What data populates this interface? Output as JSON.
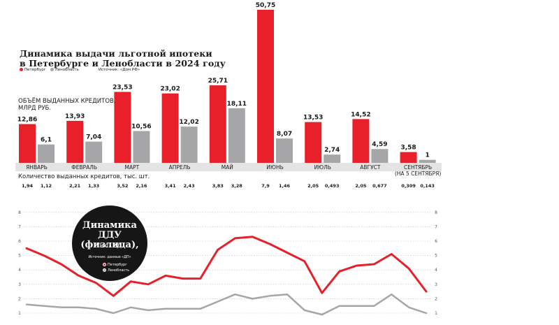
{
  "title_line1": "Динамика выдачи льготной ипотеки",
  "title_line2": "в Петербурге и Ленобласти в 2024 году",
  "legend": {
    "spb": "Петербург",
    "lo": "Ленобласть",
    "source": "Источник: «Дом.РФ»"
  },
  "volume_label_line1": "ОБЪЁМ ВЫДАННЫХ КРЕДИТОВ,",
  "volume_label_line2": "МЛРД РУБ.",
  "count_label": "Количество выданных кредитов, тыс. шт.",
  "badge": {
    "line1": "Динамика",
    "line2": "ДДУ",
    "line3": "(физлица),",
    "line4": "тыс. ед.",
    "source": "Источник: данные «ДП»",
    "spb": "Петербург",
    "lo": "Ленобласть"
  },
  "colors": {
    "spb": "#e8202a",
    "lo": "#a6a6a8",
    "badge": "#161616"
  },
  "chart_data": [
    {
      "type": "bar",
      "categories": [
        "ЯНВАРЬ",
        "ФЕВРАЛЬ",
        "МАРТ",
        "АПРЕЛЬ",
        "МАЙ",
        "ИЮНЬ",
        "ИЮЛЬ",
        "АВГУСТ",
        "СЕНТЯБРЬ\n(НА 5 СЕНТЯБРЯ)"
      ],
      "series": [
        {
          "name": "Петербург",
          "values": [
            12.86,
            13.93,
            23.53,
            23.02,
            25.71,
            50.75,
            13.53,
            14.52,
            3.58
          ],
          "labels": [
            "12,86",
            "13,93",
            "23,53",
            "23,02",
            "25,71",
            "50,75",
            "13,53",
            "14,52",
            "3,58"
          ]
        },
        {
          "name": "Ленобласть",
          "values": [
            6.1,
            7.04,
            10.56,
            12.02,
            18.11,
            8.07,
            2.74,
            4.59,
            1
          ],
          "labels": [
            "6,1",
            "7,04",
            "10,56",
            "12,02",
            "18,11",
            "8,07",
            "2,74",
            "4,59",
            "1"
          ]
        }
      ],
      "counts": {
        "spb": [
          "1,94",
          "2,21",
          "3,52",
          "3,41",
          "3,83",
          "7,9",
          "2,05",
          "2,05",
          "0,309"
        ],
        "lo": [
          "1,12",
          "1,33",
          "2,16",
          "2,43",
          "3,28",
          "1,46",
          "0,493",
          "0,677",
          "0,143"
        ]
      },
      "ylabel": "ОБЪЁМ ВЫДАННЫХ КРЕДИТОВ, МЛРД РУБ."
    },
    {
      "type": "line",
      "ylim": [
        1,
        8
      ],
      "yticks": [
        1,
        2,
        3,
        4,
        5,
        6,
        7,
        8
      ],
      "series": [
        {
          "name": "Петербург",
          "values": [
            5.5,
            5.0,
            4.4,
            3.6,
            3.1,
            2.2,
            3.2,
            3.0,
            3.6,
            3.4,
            3.4,
            5.4,
            6.2,
            6.3,
            5.8,
            5.2,
            4.6,
            2.4,
            3.9,
            4.3,
            4.4,
            5.1,
            4.1,
            2.5
          ]
        },
        {
          "name": "Ленобласть",
          "values": [
            1.6,
            1.5,
            1.4,
            1.4,
            1.3,
            1.0,
            1.4,
            1.2,
            1.3,
            1.3,
            1.3,
            1.8,
            2.3,
            2.0,
            2.2,
            2.3,
            1.2,
            0.9,
            1.5,
            1.5,
            1.5,
            2.3,
            1.4,
            1.0
          ]
        }
      ]
    }
  ]
}
